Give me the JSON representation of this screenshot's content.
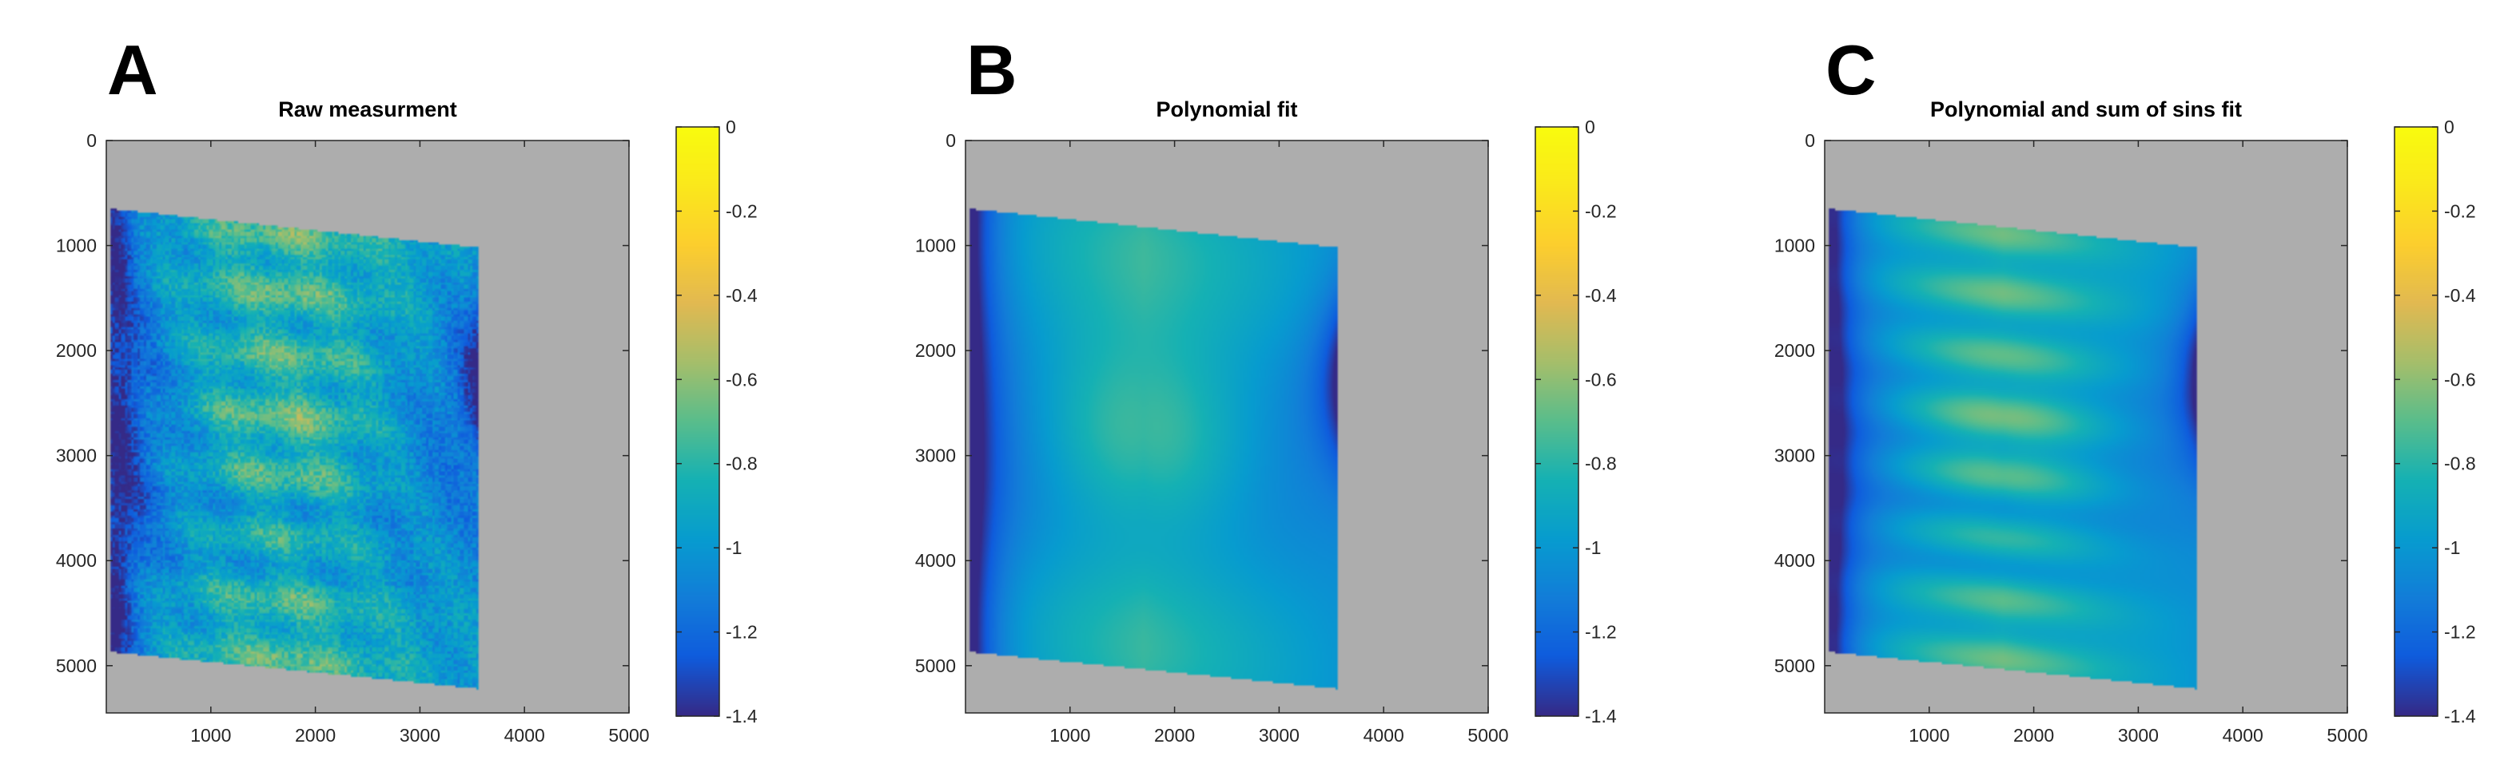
{
  "chart_data": [
    {
      "type": "heatmap",
      "panel_label": "A",
      "title": "Raw measurment",
      "xlim": [
        0,
        5000
      ],
      "ylim": [
        5450,
        0
      ],
      "xticks": [
        1000,
        2000,
        3000,
        4000,
        5000
      ],
      "yticks": [
        0,
        1000,
        2000,
        3000,
        4000,
        5000
      ],
      "background_color": "#adadad",
      "data_region": [
        [
          50,
          650
        ],
        [
          3570,
          1020
        ],
        [
          3570,
          5220
        ],
        [
          50,
          4870
        ]
      ],
      "colorbar": {
        "min": -1.4,
        "max": 0,
        "ticks": [
          "0",
          "-0.2",
          "-0.4",
          "-0.6",
          "-0.8",
          "-1",
          "-1.2",
          "-1.4"
        ],
        "colormap": "parula"
      },
      "surface": "raw"
    },
    {
      "type": "heatmap",
      "panel_label": "B",
      "title": "Polynomial fit",
      "xlim": [
        0,
        5000
      ],
      "ylim": [
        5450,
        0
      ],
      "xticks": [
        1000,
        2000,
        3000,
        4000,
        5000
      ],
      "yticks": [
        0,
        1000,
        2000,
        3000,
        4000,
        5000
      ],
      "background_color": "#adadad",
      "data_region": [
        [
          50,
          650
        ],
        [
          3570,
          1020
        ],
        [
          3570,
          5220
        ],
        [
          50,
          4870
        ]
      ],
      "colorbar": {
        "min": -1.4,
        "max": 0,
        "ticks": [
          "0",
          "-0.2",
          "-0.4",
          "-0.6",
          "-0.8",
          "-1",
          "-1.2",
          "-1.4"
        ],
        "colormap": "parula"
      },
      "surface": "polynomial"
    },
    {
      "type": "heatmap",
      "panel_label": "C",
      "title": "Polynomial and sum of sins fit",
      "xlim": [
        0,
        5000
      ],
      "ylim": [
        5450,
        0
      ],
      "xticks": [
        1000,
        2000,
        3000,
        4000,
        5000
      ],
      "yticks": [
        0,
        1000,
        2000,
        3000,
        4000,
        5000
      ],
      "background_color": "#adadad",
      "data_region": [
        [
          50,
          650
        ],
        [
          3570,
          1020
        ],
        [
          3570,
          5220
        ],
        [
          50,
          4870
        ]
      ],
      "colorbar": {
        "min": -1.4,
        "max": 0,
        "ticks": [
          "0",
          "-0.2",
          "-0.4",
          "-0.6",
          "-0.8",
          "-1",
          "-1.2",
          "-1.4"
        ],
        "colormap": "parula"
      },
      "surface": "poly_sins"
    }
  ]
}
